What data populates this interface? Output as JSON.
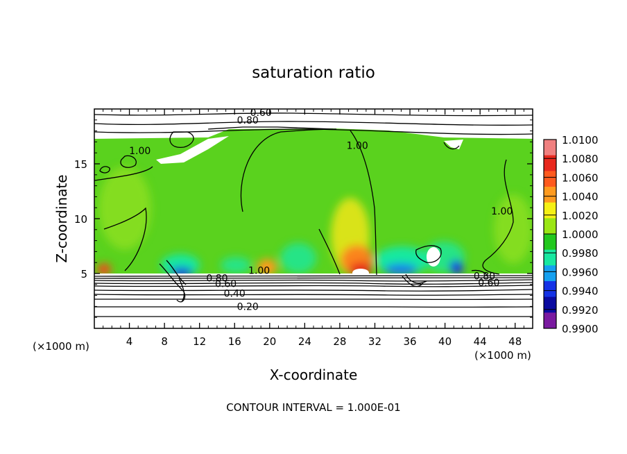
{
  "chart_data": {
    "type": "heatmap",
    "title": "saturation ratio",
    "xlabel": "X-coordinate",
    "ylabel": "Z-coordinate",
    "x_unit": "(×1000 m)",
    "z_unit": "(×1000 m)",
    "x_ticks": [
      4,
      8,
      12,
      16,
      20,
      24,
      28,
      32,
      36,
      40,
      44,
      48
    ],
    "z_ticks": [
      5,
      10,
      15
    ],
    "xlim": [
      0,
      50
    ],
    "zlim": [
      0,
      20
    ],
    "colorbar": {
      "levels": [
        "1.0100",
        "1.0080",
        "1.0060",
        "1.0040",
        "1.0020",
        "1.0000",
        "0.9980",
        "0.9960",
        "0.9940",
        "0.9920",
        "0.9900"
      ],
      "colors": [
        "#f08080",
        "#e8281e",
        "#ff5a1e",
        "#ff9a1e",
        "#f5f014",
        "#9be614",
        "#22c81e",
        "#18e8a0",
        "#14a0f0",
        "#1432e6",
        "#0a0aa0",
        "#7a1aa0"
      ]
    },
    "contour_labels": [
      {
        "text": "0.60",
        "x": 19.0,
        "z": 19.5
      },
      {
        "text": "0.80",
        "x": 17.5,
        "z": 18.8
      },
      {
        "text": "1.00",
        "x": 5.2,
        "z": 16.0
      },
      {
        "text": "1.00",
        "x": 30.0,
        "z": 16.5
      },
      {
        "text": "1.00",
        "x": 46.5,
        "z": 10.5
      },
      {
        "text": "1.00",
        "x": 18.8,
        "z": 5.1
      },
      {
        "text": "0.80",
        "x": 14.0,
        "z": 4.4
      },
      {
        "text": "0.60",
        "x": 15.0,
        "z": 3.9
      },
      {
        "text": "0.40",
        "x": 16.0,
        "z": 3.0
      },
      {
        "text": "0.20",
        "x": 17.5,
        "z": 1.8
      },
      {
        "text": "0.80",
        "x": 44.5,
        "z": 4.6
      },
      {
        "text": "0.60",
        "x": 45.0,
        "z": 4.0
      }
    ],
    "footer": "CONTOUR INTERVAL = 1.000E-01"
  }
}
